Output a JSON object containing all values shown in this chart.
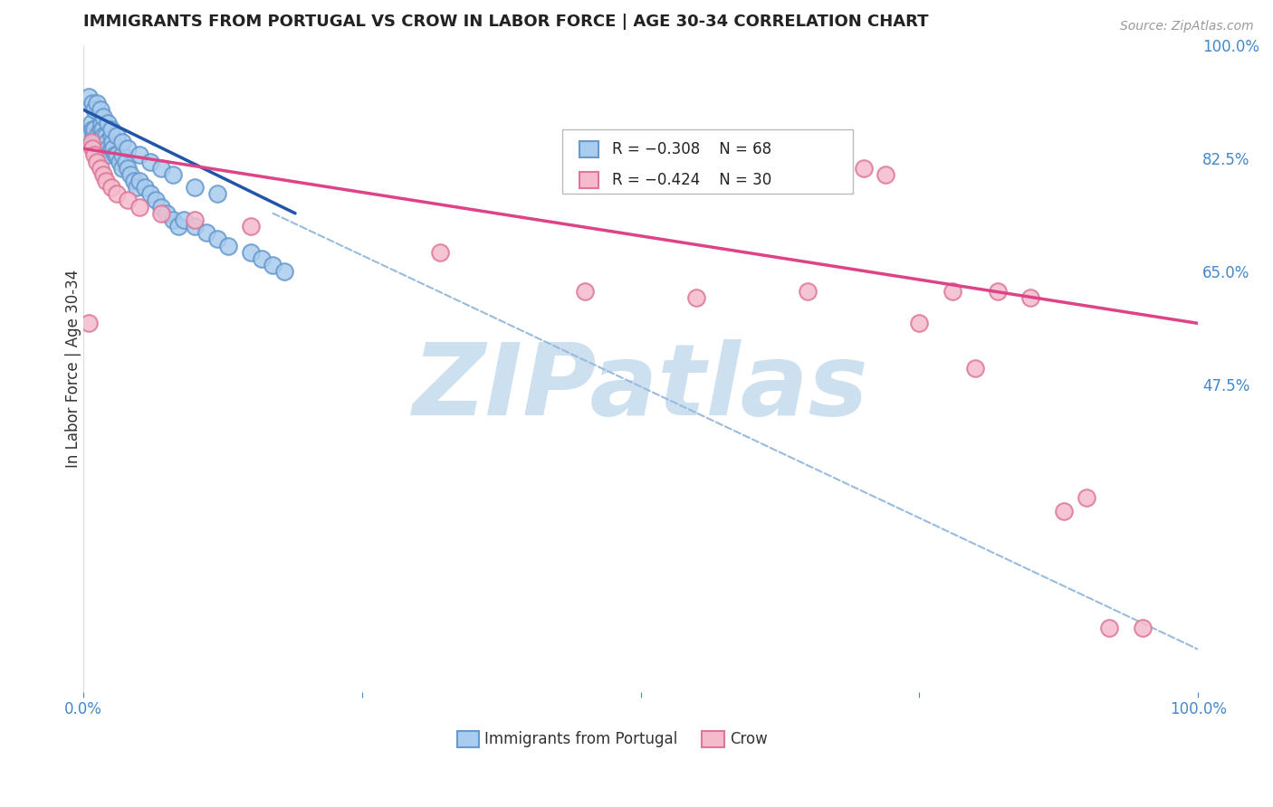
{
  "title": "IMMIGRANTS FROM PORTUGAL VS CROW IN LABOR FORCE | AGE 30-34 CORRELATION CHART",
  "source": "Source: ZipAtlas.com",
  "ylabel": "In Labor Force | Age 30-34",
  "xlim": [
    0.0,
    1.0
  ],
  "ylim": [
    0.0,
    1.0
  ],
  "xtick_positions": [
    0.0,
    0.25,
    0.5,
    0.75,
    1.0
  ],
  "xtick_labels": [
    "0.0%",
    "",
    "",
    "",
    "100.0%"
  ],
  "ytick_positions_right": [
    1.0,
    0.825,
    0.65,
    0.475
  ],
  "ytick_labels_right": [
    "100.0%",
    "82.5%",
    "65.0%",
    "47.5%"
  ],
  "legend_r1": "R = −0.308",
  "legend_n1": "N = 68",
  "legend_r2": "R = −0.424",
  "legend_n2": "N = 30",
  "blue_color": "#6699cc",
  "blue_face_color": "#aaccee",
  "pink_color": "#dd7799",
  "pink_face_color": "#f4bbcc",
  "watermark": "ZIPatlas",
  "watermark_color": "#cde0f0",
  "blue_points_x": [
    0.005,
    0.007,
    0.008,
    0.009,
    0.01,
    0.01,
    0.012,
    0.013,
    0.014,
    0.015,
    0.015,
    0.016,
    0.017,
    0.018,
    0.019,
    0.02,
    0.02,
    0.021,
    0.022,
    0.023,
    0.025,
    0.025,
    0.026,
    0.027,
    0.028,
    0.03,
    0.032,
    0.035,
    0.035,
    0.038,
    0.04,
    0.042,
    0.045,
    0.048,
    0.05,
    0.055,
    0.06,
    0.065,
    0.07,
    0.075,
    0.08,
    0.085,
    0.09,
    0.1,
    0.11,
    0.12,
    0.13,
    0.15,
    0.16,
    0.17,
    0.18,
    0.005,
    0.008,
    0.01,
    0.012,
    0.015,
    0.018,
    0.022,
    0.025,
    0.03,
    0.035,
    0.04,
    0.05,
    0.06,
    0.07,
    0.08,
    0.1,
    0.12
  ],
  "blue_points_y": [
    0.86,
    0.88,
    0.87,
    0.86,
    0.85,
    0.87,
    0.86,
    0.85,
    0.84,
    0.87,
    0.89,
    0.88,
    0.87,
    0.86,
    0.85,
    0.84,
    0.86,
    0.85,
    0.84,
    0.83,
    0.84,
    0.86,
    0.85,
    0.84,
    0.83,
    0.83,
    0.82,
    0.81,
    0.83,
    0.82,
    0.81,
    0.8,
    0.79,
    0.78,
    0.79,
    0.78,
    0.77,
    0.76,
    0.75,
    0.74,
    0.73,
    0.72,
    0.73,
    0.72,
    0.71,
    0.7,
    0.69,
    0.68,
    0.67,
    0.66,
    0.65,
    0.92,
    0.91,
    0.9,
    0.91,
    0.9,
    0.89,
    0.88,
    0.87,
    0.86,
    0.85,
    0.84,
    0.83,
    0.82,
    0.81,
    0.8,
    0.78,
    0.77
  ],
  "pink_points_x": [
    0.005,
    0.007,
    0.008,
    0.01,
    0.012,
    0.015,
    0.018,
    0.02,
    0.025,
    0.03,
    0.04,
    0.05,
    0.07,
    0.1,
    0.15,
    0.32,
    0.45,
    0.55,
    0.65,
    0.7,
    0.72,
    0.75,
    0.78,
    0.8,
    0.82,
    0.85,
    0.88,
    0.9,
    0.92,
    0.95
  ],
  "pink_points_y": [
    0.57,
    0.85,
    0.84,
    0.83,
    0.82,
    0.81,
    0.8,
    0.79,
    0.78,
    0.77,
    0.76,
    0.75,
    0.74,
    0.73,
    0.72,
    0.68,
    0.62,
    0.61,
    0.62,
    0.81,
    0.8,
    0.57,
    0.62,
    0.5,
    0.62,
    0.61,
    0.28,
    0.3,
    0.1,
    0.1
  ],
  "blue_line_x": [
    0.0,
    0.19
  ],
  "blue_line_y": [
    0.9,
    0.74
  ],
  "pink_line_x": [
    0.0,
    1.0
  ],
  "pink_line_y": [
    0.84,
    0.57
  ],
  "dashed_line_x": [
    0.17,
    1.02
  ],
  "dashed_line_y": [
    0.74,
    0.05
  ]
}
